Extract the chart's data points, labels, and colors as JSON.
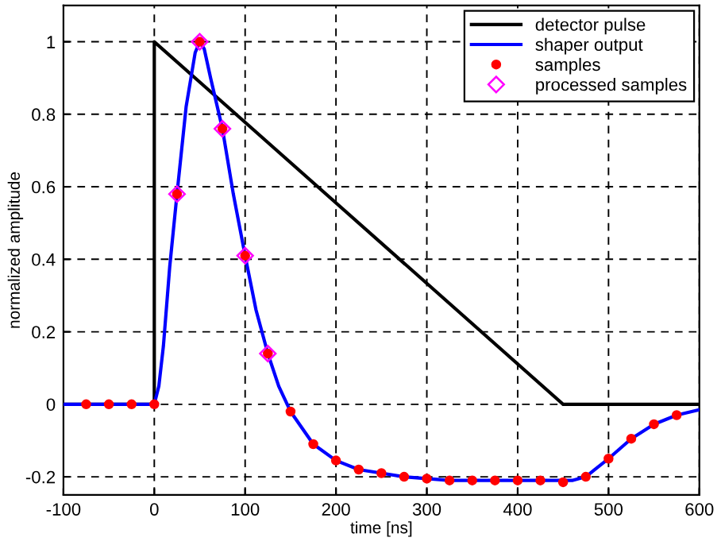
{
  "chart_data": {
    "type": "line",
    "xlabel": "time [ns]",
    "ylabel": "normalized amplitude",
    "xlim": [
      -100,
      600
    ],
    "ylim": [
      -0.25,
      1.1
    ],
    "xticks": [
      -100,
      0,
      100,
      200,
      300,
      400,
      500,
      600
    ],
    "yticks": [
      -0.2,
      0,
      0.2,
      0.4,
      0.6,
      0.8,
      1
    ],
    "grid": true,
    "legend": "top right",
    "series": [
      {
        "name": "detector pulse",
        "color": "#000000",
        "marker": "none",
        "x": [
          -100,
          0,
          0,
          450,
          600
        ],
        "values": [
          0,
          0,
          1,
          0,
          0
        ]
      },
      {
        "name": "shaper output",
        "color": "#0000ff",
        "marker": "none",
        "x": [
          -100,
          0,
          5,
          10,
          17,
          25,
          35,
          45,
          50,
          55,
          62,
          75,
          87,
          100,
          112,
          125,
          137,
          150,
          175,
          200,
          225,
          250,
          275,
          300,
          325,
          350,
          375,
          400,
          425,
          450,
          460,
          475,
          485,
          500,
          525,
          550,
          575,
          600
        ],
        "values": [
          0,
          0,
          0.05,
          0.16,
          0.38,
          0.58,
          0.82,
          0.97,
          1.0,
          0.98,
          0.9,
          0.76,
          0.58,
          0.41,
          0.26,
          0.14,
          0.05,
          -0.02,
          -0.11,
          -0.155,
          -0.18,
          -0.19,
          -0.2,
          -0.205,
          -0.21,
          -0.21,
          -0.21,
          -0.21,
          -0.21,
          -0.21,
          -0.21,
          -0.2,
          -0.18,
          -0.15,
          -0.095,
          -0.055,
          -0.03,
          -0.015
        ]
      },
      {
        "name": "samples",
        "type": "scatter",
        "color": "#ff0000",
        "marker": "circle",
        "x": [
          -75,
          -50,
          -25,
          0,
          25,
          50,
          75,
          100,
          125,
          150,
          175,
          200,
          225,
          250,
          275,
          300,
          325,
          350,
          375,
          400,
          425,
          450,
          475,
          500,
          525,
          550,
          575
        ],
        "values": [
          0,
          0,
          0,
          0,
          0.58,
          1.0,
          0.76,
          0.41,
          0.14,
          -0.02,
          -0.11,
          -0.155,
          -0.18,
          -0.19,
          -0.2,
          -0.205,
          -0.21,
          -0.21,
          -0.21,
          -0.21,
          -0.21,
          -0.215,
          -0.2,
          -0.15,
          -0.095,
          -0.055,
          -0.03
        ]
      },
      {
        "name": "processed samples",
        "type": "scatter",
        "color": "#ff00ff",
        "marker": "diamond",
        "x": [
          25,
          50,
          75,
          100,
          125
        ],
        "values": [
          0.58,
          1.0,
          0.76,
          0.41,
          0.14
        ]
      }
    ]
  }
}
